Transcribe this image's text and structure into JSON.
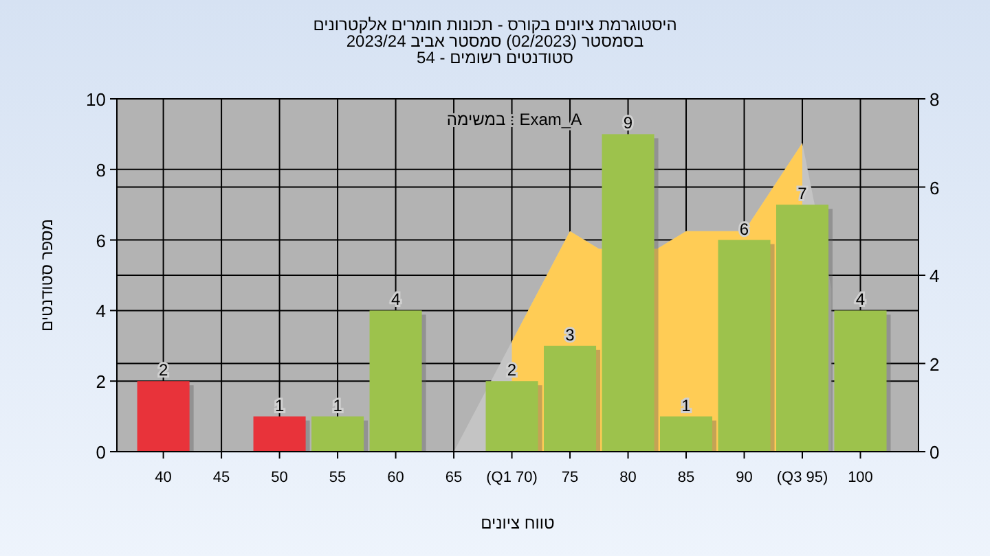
{
  "chart_data": {
    "type": "bar",
    "title": "היסטוגרמת ציונים בקורס - תכונות חומרים אלקטרונים\nבסמסטר (02/2023) סמסטר אביב 2023/24\nסטודנטים רשומים - 54",
    "xlabel": "טווח ציונים",
    "ylabel": "מספר סטודנטים",
    "annotations": [
      "במשימה : Exam_A"
    ],
    "series": [
      {
        "type": "area",
        "axis": "y2",
        "color": "#c4c4c4",
        "x": [
          65,
          70,
          75,
          77.5,
          82.5,
          85,
          90,
          95,
          97.5
        ],
        "values": [
          0,
          2.5,
          5,
          4.6,
          4.6,
          5,
          5,
          7,
          3.7
        ]
      },
      {
        "type": "area",
        "axis": "y2",
        "color": "#ffcc55",
        "x": [
          70,
          75,
          77.5,
          82.5,
          85,
          90,
          95
        ],
        "values": [
          2.5,
          5,
          4.6,
          4.6,
          5,
          5,
          7
        ]
      },
      {
        "x": [
          40,
          50,
          55,
          60,
          70,
          75,
          80,
          85,
          90,
          95,
          100
        ],
        "values": [
          2,
          1,
          1,
          4,
          2,
          3,
          9,
          1,
          6,
          7,
          4
        ],
        "value_labels": [
          "2",
          "1",
          "1",
          "4",
          "2",
          "3",
          "9",
          "1",
          "6",
          "7",
          "4"
        ],
        "colors": [
          "#e8333a",
          "#e8333a",
          "#9dc24c",
          "#9dc24c",
          "#9dc24c",
          "#9dc24c",
          "#9dc24c",
          "#9dc24c",
          "#9dc24c",
          "#9dc24c",
          "#9dc24c"
        ]
      }
    ],
    "xlim": [
      36,
      105
    ],
    "ylim": [
      0,
      10
    ],
    "y2lim": [
      0,
      8
    ],
    "xticks": [
      40,
      45,
      50,
      55,
      60,
      65,
      {
        "value": 70,
        "label": "(Q1 70)"
      },
      75,
      80,
      85,
      90,
      {
        "value": 95,
        "label": "(Q3 95)"
      },
      100
    ],
    "yticks": [
      0,
      2,
      4,
      6,
      8,
      10
    ],
    "y2ticks": [
      0,
      2,
      4,
      6,
      8
    ],
    "grid": true
  }
}
